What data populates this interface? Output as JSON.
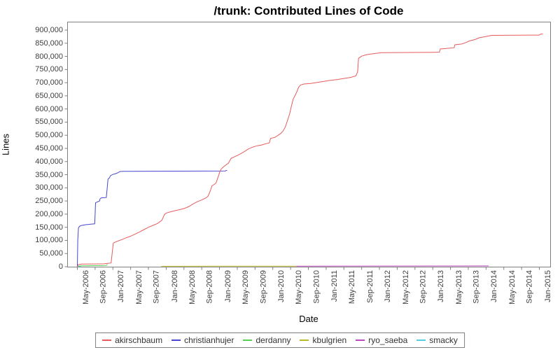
{
  "chart_data": {
    "type": "line",
    "title": "/trunk: Contributed Lines of Code",
    "xlabel": "Date",
    "ylabel": "Lines",
    "x_unit": "months since May-2006",
    "ylim": [
      0,
      900000
    ],
    "y_tick_step": 50000,
    "grid": "off",
    "legend_position": "bottom",
    "x_tick_interval_months": 4,
    "x_tick_labels": [
      "May-2006",
      "Sep-2006",
      "Jan-2007",
      "May-2007",
      "Sep-2007",
      "Jan-2008",
      "May-2008",
      "Sep-2008",
      "Jan-2009",
      "May-2009",
      "Sep-2009",
      "Jan-2010",
      "May-2010",
      "Sep-2010",
      "Jan-2011",
      "May-2011",
      "Sep-2011",
      "Jan-2012",
      "May-2012",
      "Sep-2012",
      "Jan-2013",
      "May-2013",
      "Sep-2013",
      "Jan-2014",
      "May-2014",
      "Sep-2014",
      "Jan-2015"
    ],
    "series": [
      {
        "name": "akirschbaum",
        "color": "#e45c5c",
        "points": [
          [
            0,
            0
          ],
          [
            0.2,
            8000
          ],
          [
            1,
            10000
          ],
          [
            4,
            10500
          ],
          [
            6,
            11000
          ],
          [
            7,
            13000
          ],
          [
            7.6,
            14000
          ],
          [
            7.7,
            30000
          ],
          [
            7.9,
            60000
          ],
          [
            8.1,
            90000
          ],
          [
            9,
            97000
          ],
          [
            10,
            103000
          ],
          [
            11,
            110000
          ],
          [
            12,
            116000
          ],
          [
            13,
            124000
          ],
          [
            14,
            132000
          ],
          [
            15,
            141000
          ],
          [
            16,
            150000
          ],
          [
            17,
            157000
          ],
          [
            18,
            164000
          ],
          [
            19,
            176000
          ],
          [
            19.6,
            198000
          ],
          [
            20,
            204000
          ],
          [
            21,
            209000
          ],
          [
            22,
            213000
          ],
          [
            23,
            217000
          ],
          [
            24,
            221000
          ],
          [
            25,
            228000
          ],
          [
            26,
            238000
          ],
          [
            27,
            247000
          ],
          [
            28,
            254000
          ],
          [
            29,
            262000
          ],
          [
            29.4,
            268000
          ],
          [
            29.8,
            283000
          ],
          [
            30.1,
            297000
          ],
          [
            30.3,
            308000
          ],
          [
            30.8,
            313000
          ],
          [
            31.2,
            318000
          ],
          [
            31.5,
            332000
          ],
          [
            31.8,
            347000
          ],
          [
            32.1,
            362000
          ],
          [
            32.4,
            372000
          ],
          [
            33,
            381000
          ],
          [
            34,
            394000
          ],
          [
            34.6,
            412000
          ],
          [
            35.5,
            419000
          ],
          [
            36.5,
            427000
          ],
          [
            37.5,
            437000
          ],
          [
            38.5,
            448000
          ],
          [
            39.5,
            455000
          ],
          [
            40.5,
            460000
          ],
          [
            41.5,
            463000
          ],
          [
            42.5,
            468000
          ],
          [
            43.2,
            471000
          ],
          [
            43.5,
            488000
          ],
          [
            44.5,
            492000
          ],
          [
            45.2,
            500000
          ],
          [
            45.8,
            507000
          ],
          [
            46.3,
            516000
          ],
          [
            46.8,
            531000
          ],
          [
            47.3,
            556000
          ],
          [
            47.8,
            583000
          ],
          [
            48.2,
            612000
          ],
          [
            48.6,
            638000
          ],
          [
            49,
            651000
          ],
          [
            49.4,
            665000
          ],
          [
            49.8,
            682000
          ],
          [
            50.2,
            691000
          ],
          [
            51,
            695000
          ],
          [
            52.5,
            697000
          ],
          [
            54,
            701000
          ],
          [
            55.5,
            705000
          ],
          [
            57,
            709000
          ],
          [
            58.5,
            712000
          ],
          [
            60,
            716000
          ],
          [
            61.5,
            720000
          ],
          [
            62.7,
            726000
          ],
          [
            63.1,
            741000
          ],
          [
            63.3,
            793000
          ],
          [
            64,
            801000
          ],
          [
            65,
            806000
          ],
          [
            66,
            809000
          ],
          [
            67.5,
            812000
          ],
          [
            68.5,
            814000
          ],
          [
            80,
            815500
          ],
          [
            81.5,
            816000
          ],
          [
            81.7,
            828000
          ],
          [
            83,
            830000
          ],
          [
            84.8,
            833000
          ],
          [
            85,
            844000
          ],
          [
            86.5,
            847000
          ],
          [
            87.5,
            853000
          ],
          [
            88.3,
            859000
          ],
          [
            89.5,
            864000
          ],
          [
            90.5,
            871000
          ],
          [
            91.5,
            874000
          ],
          [
            93.3,
            880000
          ],
          [
            104,
            881000
          ],
          [
            104.3,
            885000
          ],
          [
            104.8,
            885000
          ]
        ]
      },
      {
        "name": "christianhujer",
        "color": "#4646d2",
        "points": [
          [
            0,
            0
          ],
          [
            0.1,
            100000
          ],
          [
            0.25,
            148000
          ],
          [
            0.5,
            154000
          ],
          [
            1,
            157000
          ],
          [
            2,
            160000
          ],
          [
            3,
            161500
          ],
          [
            3.9,
            163000
          ],
          [
            4.0,
            200000
          ],
          [
            4.1,
            243000
          ],
          [
            4.6,
            247000
          ],
          [
            5.0,
            250000
          ],
          [
            5.1,
            258000
          ],
          [
            5.4,
            262000
          ],
          [
            6.5,
            263000
          ],
          [
            6.7,
            295000
          ],
          [
            6.9,
            333000
          ],
          [
            7.2,
            338000
          ],
          [
            7.5,
            347000
          ],
          [
            8,
            351000
          ],
          [
            8.6,
            354000
          ],
          [
            9.2,
            358000
          ],
          [
            9.6,
            362000
          ],
          [
            10.5,
            363000
          ],
          [
            33.3,
            364000
          ],
          [
            33.5,
            366000
          ],
          [
            33.7,
            366000
          ]
        ]
      },
      {
        "name": "derdanny",
        "color": "#55d055",
        "points": [
          [
            0.2,
            2500
          ],
          [
            1,
            3200
          ],
          [
            3,
            3800
          ],
          [
            5.5,
            4200
          ],
          [
            6.5,
            4500
          ],
          [
            6.7,
            8000
          ],
          [
            6.8,
            8000
          ]
        ]
      },
      {
        "name": "kbulgrien",
        "color": "#b9b92a",
        "points": [
          [
            18.9,
            1500
          ],
          [
            30,
            1800
          ],
          [
            49.3,
            2200
          ]
        ]
      },
      {
        "name": "ryo_saeba",
        "color": "#bb49bb",
        "points": [
          [
            49.3,
            2200
          ],
          [
            60,
            2400
          ],
          [
            80,
            2600
          ],
          [
            92.6,
            2800
          ]
        ]
      },
      {
        "name": "smacky",
        "color": "#4fd1e0",
        "points": [
          [
            0,
            400
          ],
          [
            0.8,
            700
          ]
        ]
      }
    ]
  },
  "colors": {
    "plot_border": "#808080",
    "tick_text": "#404040",
    "title_text": "#000000"
  }
}
